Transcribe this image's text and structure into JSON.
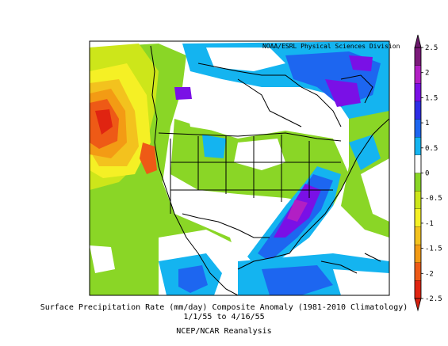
{
  "credit": "NOAA/ESRL Physical Sciences Division",
  "caption": {
    "line1": "Surface Precipitation Rate (mm/day) Composite Anomaly (1981-2010 Climatology)",
    "line2": "1/1/55  to 4/16/55",
    "line3": "NCEP/NCAR Reanalysis"
  },
  "colorbar": {
    "ticks": [
      "2.5",
      "2",
      "1.5",
      "1",
      "0.5",
      "0",
      "-0.5",
      "-1",
      "-1.5",
      "-2",
      "-2.5"
    ],
    "colors": [
      "#7b1a7a",
      "#b21fc4",
      "#7a10e6",
      "#2d2de6",
      "#1d66f0",
      "#14b4f0",
      "#ffffff",
      "#8ad626",
      "#cde61a",
      "#f5f025",
      "#f3c21e",
      "#f39b14",
      "#ee5a16",
      "#e02411"
    ]
  },
  "map": {
    "ocean_color": "#ffffff",
    "land_outline_color": "#000000"
  }
}
